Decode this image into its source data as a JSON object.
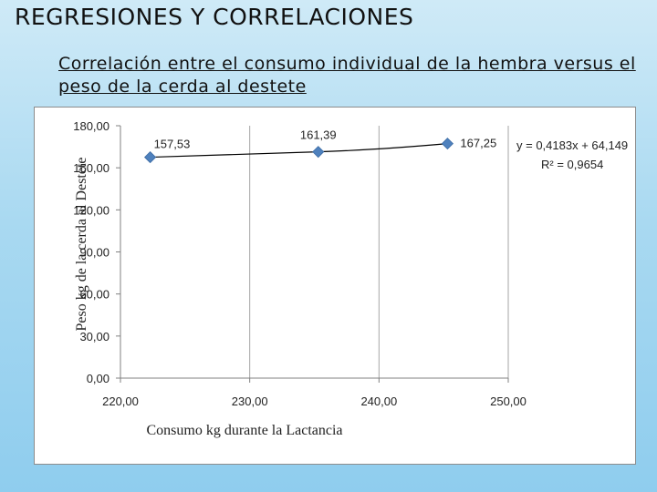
{
  "slide": {
    "title": "REGRESIONES Y CORRELACIONES",
    "subtitle": "Correlación entre el consumo individual de la hembra versus el peso de la cerda al destete"
  },
  "chart_data": {
    "type": "scatter",
    "title": "",
    "xlabel": "Consumo kg durante la Lactancia",
    "ylabel": "Peso kg de la cerda al Destete",
    "xlim": [
      220,
      250
    ],
    "ylim": [
      0,
      180
    ],
    "x_ticks": [
      "220,00",
      "230,00",
      "240,00",
      "250,00"
    ],
    "y_ticks": [
      "0,00",
      "30,00",
      "60,00",
      "90,00",
      "120,00",
      "150,00",
      "180,00"
    ],
    "grid": "vertical",
    "series": [
      {
        "x": [
          222.3,
          235.3,
          245.3
        ],
        "y": [
          157.53,
          161.39,
          167.25
        ],
        "labels": [
          "157,53",
          "161,39",
          "167,25"
        ],
        "color": "#4f81bd",
        "marker": "diamond"
      }
    ],
    "trendline": {
      "type": "linear",
      "equation": "y = 0,4183x + 64,149",
      "r_squared": "R² = 0,9654",
      "color": "#000000"
    }
  }
}
